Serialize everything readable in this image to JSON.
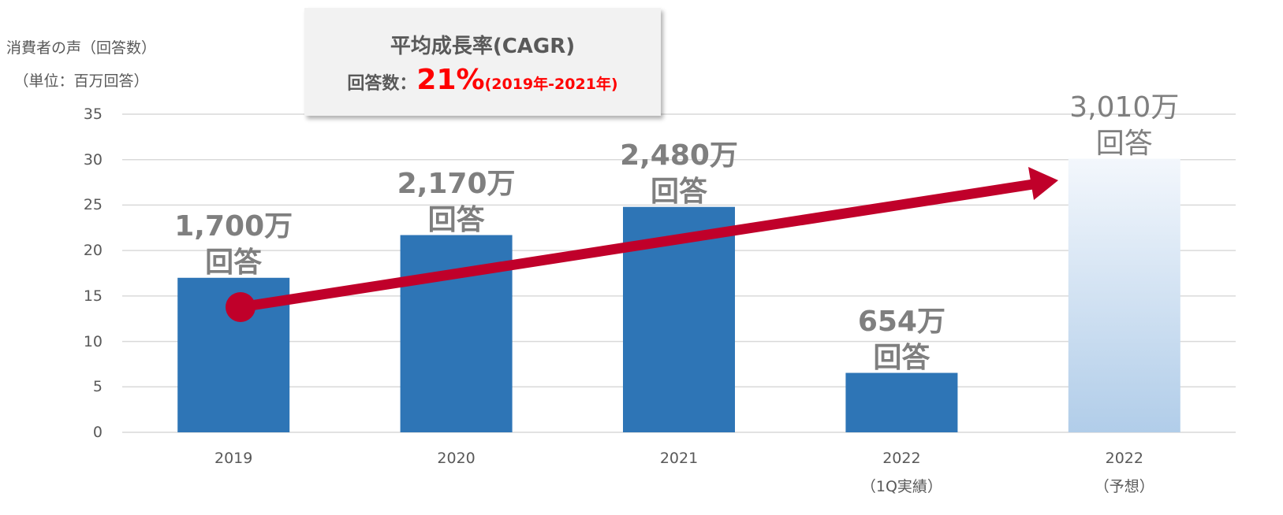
{
  "chart_data": {
    "type": "bar",
    "ylabel": "消費者の声（回答数）\n（単位：百万回答）",
    "categories": [
      "2019",
      "2020",
      "2021",
      "2022\n（1Q実績）",
      "2022\n（予想）"
    ],
    "values": [
      17,
      21.7,
      24.8,
      6.54,
      30.1
    ],
    "value_labels": [
      "1,700万\n回答",
      "2,170万\n回答",
      "2,480万\n回答",
      "654万\n回答",
      "3,010万\n回答"
    ],
    "colors": [
      [
        "#2e75b6",
        "#2e75b6"
      ],
      [
        "#2e75b6",
        "#2e75b6"
      ],
      [
        "#2e75b6",
        "#2e75b6"
      ],
      [
        "#2e75b6",
        "#2e75b6"
      ],
      [
        "#f3f7fc",
        "#b1cde9"
      ]
    ],
    "ylim": [
      0,
      35
    ],
    "yticks": [
      0,
      5,
      10,
      15,
      20,
      25,
      30,
      35
    ],
    "grid": true,
    "annotation": {
      "title": "平均成長率(CAGR)",
      "label": "回答数：",
      "value": "21%",
      "period": "(2019年-2021年)"
    }
  }
}
